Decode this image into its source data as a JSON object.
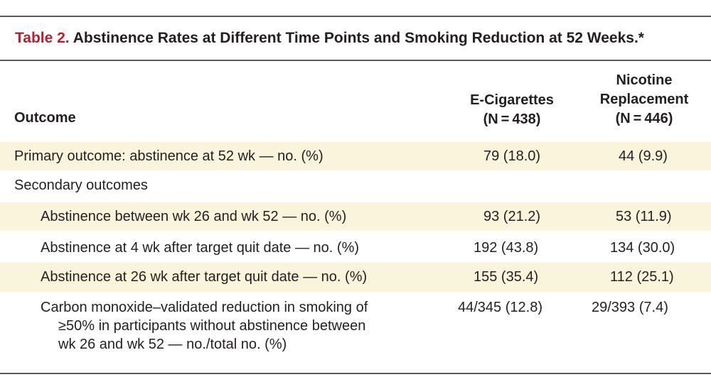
{
  "table": {
    "label": "Table 2.",
    "title": "Abstinence Rates at Different Time Points and Smoking Reduction at 52 Weeks.*",
    "columns": {
      "outcome": "Outcome",
      "ecig": {
        "line1": "E-Cigarettes",
        "line2": "(N = 438)"
      },
      "nrt": {
        "line1": "Nicotine",
        "line2": "Replacement",
        "line3": "(N = 446)"
      }
    },
    "rows": [
      {
        "label": "Primary outcome: abstinence at 52 wk — no. (%)",
        "ecig": "79 (18.0)",
        "nrt": "44 (9.9)"
      },
      {
        "label": "Secondary outcomes",
        "ecig": "",
        "nrt": ""
      },
      {
        "label": "Abstinence between wk 26 and wk 52 — no. (%)",
        "ecig": "93 (21.2)",
        "nrt": "53 (11.9)"
      },
      {
        "label": "Abstinence at 4 wk after target quit date — no. (%)",
        "ecig": "192 (43.8)",
        "nrt": "134 (30.0)"
      },
      {
        "label": "Abstinence at 26 wk after target quit date — no. (%)",
        "ecig": "155 (35.4)",
        "nrt": "112 (25.1)"
      },
      {
        "label_line1": "Carbon monoxide–validated reduction in smoking of",
        "label_line2": "≥50% in participants without abstinence between",
        "label_line3": "wk 26 and wk 52 — no./total no. (%)",
        "ecig": "44/345 (12.8)",
        "nrt": "29/393 (7.4)"
      }
    ]
  },
  "colors": {
    "label_red": "#b8202f",
    "shade": "#fbf4dc",
    "rule": "#5a5a5a"
  }
}
